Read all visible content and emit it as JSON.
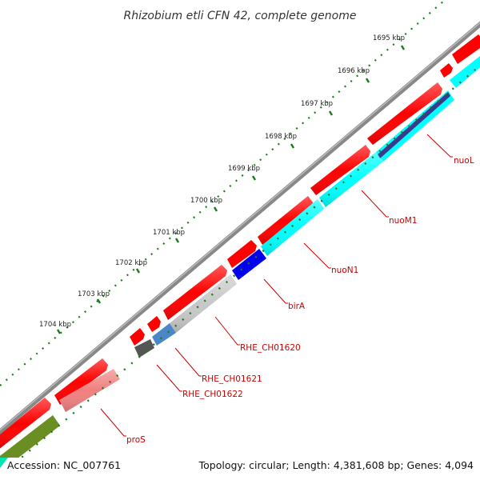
{
  "title": "Rhizobium etli CFN 42, complete genome",
  "footer": {
    "accession": "Accession: NC_007761",
    "summary": "Topology: circular; Length: 4,381,608 bp; Genes: 4,094"
  },
  "ruler": {
    "labels": [
      "1695 kbp",
      "1696 kbp",
      "1697 kbp",
      "1698 kbp",
      "1699 kbp",
      "1700 kbp",
      "1701 kbp",
      "1702 kbp",
      "1703 kbp",
      "1704 kbp"
    ]
  },
  "genes": [
    {
      "name": "nuoL",
      "color": "#3a3a8c"
    },
    {
      "name": "nuoM1",
      "color": "#00ffff"
    },
    {
      "name": "nuoN1",
      "color": "#00ffff"
    },
    {
      "name": "birA",
      "color": "#0000ee"
    },
    {
      "name": "RHE_CH01620",
      "color": "#c8c8c8"
    },
    {
      "name": "RHE_CH01621",
      "color": "#4a86c8"
    },
    {
      "name": "RHE_CH01622",
      "color": "#555555"
    },
    {
      "name": "proS",
      "color": "#f08080"
    }
  ],
  "colors": {
    "cds_forward": "#ff0000",
    "backbone": "#888888",
    "tick": "#1a7a1a",
    "olive_gene": "#6b8e23",
    "label": "#cc0000"
  }
}
